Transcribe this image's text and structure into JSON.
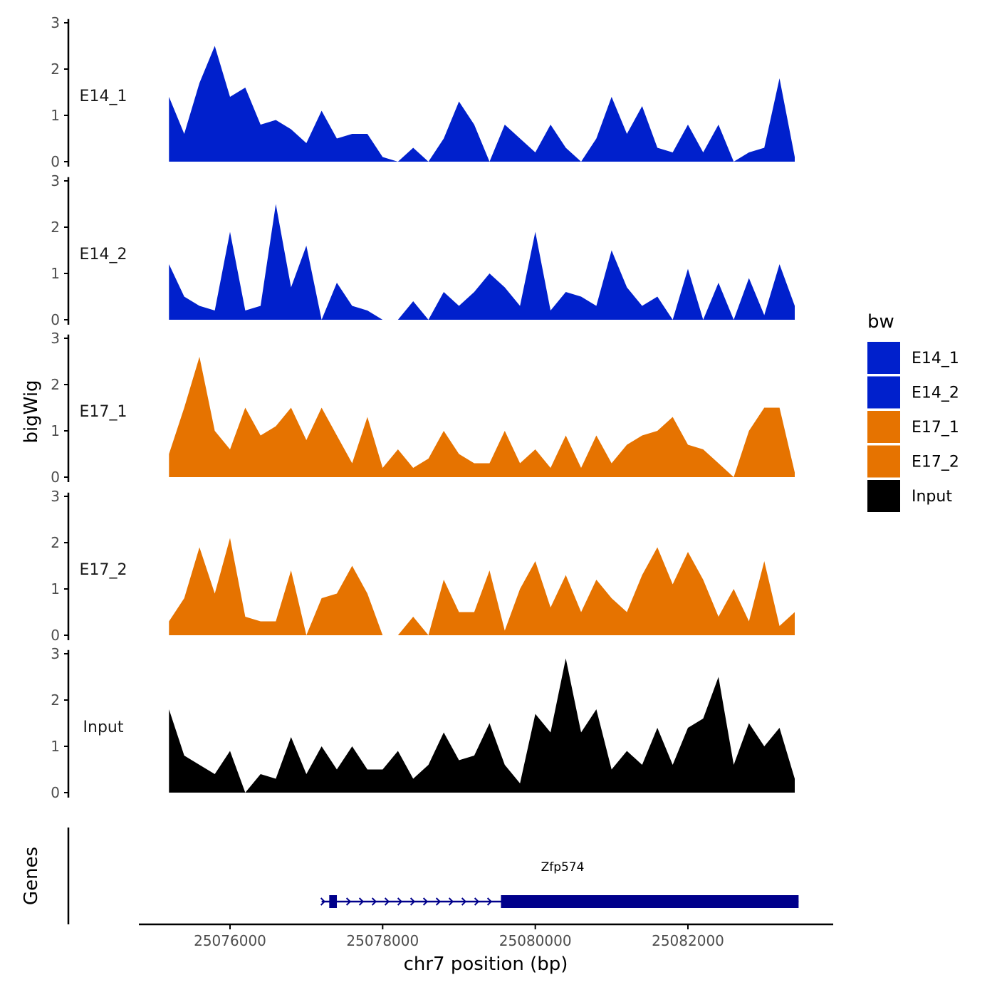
{
  "chart_data": {
    "type": "area",
    "title": "",
    "chromosome": "chr7",
    "xlabel": "chr7 position (bp)",
    "ylabel": "bigWig",
    "genes_label": "Genes",
    "xlim": [
      25074600,
      25083700
    ],
    "x_ticks": [
      25076000,
      25078000,
      25080000,
      25082000
    ],
    "x_tick_labels": [
      "25076000",
      "25078000",
      "25080000",
      "25082000"
    ],
    "ylim": [
      0,
      3
    ],
    "y_ticks": [
      0,
      1,
      2,
      3
    ],
    "y_tick_labels": [
      "0",
      "1",
      "2",
      "3"
    ],
    "legend": {
      "title": "bw",
      "position": "right",
      "entries": [
        {
          "label": "E14_1",
          "color": "#0020CC"
        },
        {
          "label": "E14_2",
          "color": "#0020CC"
        },
        {
          "label": "E17_1",
          "color": "#E67300"
        },
        {
          "label": "E17_2",
          "color": "#E67300"
        },
        {
          "label": "Input",
          "color": "#000000"
        }
      ]
    },
    "x": [
      25075200,
      25075400,
      25075600,
      25075800,
      25076000,
      25076200,
      25076400,
      25076600,
      25076800,
      25077000,
      25077200,
      25077400,
      25077600,
      25077800,
      25078000,
      25078200,
      25078400,
      25078600,
      25078800,
      25079000,
      25079200,
      25079400,
      25079600,
      25079800,
      25080000,
      25080200,
      25080400,
      25080600,
      25080800,
      25081000,
      25081200,
      25081400,
      25081600,
      25081800,
      25082000,
      25082200,
      25082400,
      25082600,
      25082800,
      25083000,
      25083200,
      25083400
    ],
    "series": [
      {
        "name": "E14_1",
        "color": "#0020CC",
        "values": [
          1.4,
          0.6,
          1.7,
          2.5,
          1.4,
          1.6,
          0.8,
          0.9,
          0.7,
          0.4,
          1.1,
          0.5,
          0.6,
          0.6,
          0.1,
          0.0,
          0.3,
          0.0,
          0.5,
          1.3,
          0.8,
          0.0,
          0.8,
          0.5,
          0.2,
          0.8,
          0.3,
          0.0,
          0.5,
          1.4,
          0.6,
          1.2,
          0.3,
          0.2,
          0.8,
          0.2,
          0.8,
          0.0,
          0.2,
          0.3,
          1.8,
          0.1
        ]
      },
      {
        "name": "E14_2",
        "color": "#0020CC",
        "values": [
          1.2,
          0.5,
          0.3,
          0.2,
          1.9,
          0.2,
          0.3,
          2.5,
          0.7,
          1.6,
          0.0,
          0.8,
          0.3,
          0.2,
          0.0,
          0.0,
          0.4,
          0.0,
          0.6,
          0.3,
          0.6,
          1.0,
          0.7,
          0.3,
          1.9,
          0.2,
          0.6,
          0.5,
          0.3,
          1.5,
          0.7,
          0.3,
          0.5,
          0.0,
          1.1,
          0.0,
          0.8,
          0.0,
          0.9,
          0.1,
          1.2,
          0.3
        ]
      },
      {
        "name": "E17_1",
        "color": "#E67300",
        "values": [
          0.5,
          1.5,
          2.6,
          1.0,
          0.6,
          1.5,
          0.9,
          1.1,
          1.5,
          0.8,
          1.5,
          0.9,
          0.3,
          1.3,
          0.2,
          0.6,
          0.2,
          0.4,
          1.0,
          0.5,
          0.3,
          0.3,
          1.0,
          0.3,
          0.6,
          0.2,
          0.9,
          0.2,
          0.9,
          0.3,
          0.7,
          0.9,
          1.0,
          1.3,
          0.7,
          0.6,
          0.3,
          0.0,
          1.0,
          1.5,
          1.5,
          0.1
        ]
      },
      {
        "name": "E17_2",
        "color": "#E67300",
        "values": [
          0.3,
          0.8,
          1.9,
          0.9,
          2.1,
          0.4,
          0.3,
          0.3,
          1.4,
          0.0,
          0.8,
          0.9,
          1.5,
          0.9,
          0.0,
          0.0,
          0.4,
          0.0,
          1.2,
          0.5,
          0.5,
          1.4,
          0.1,
          1.0,
          1.6,
          0.6,
          1.3,
          0.5,
          1.2,
          0.8,
          0.5,
          1.3,
          1.9,
          1.1,
          1.8,
          1.2,
          0.4,
          1.0,
          0.3,
          1.6,
          0.2,
          0.5
        ]
      },
      {
        "name": "Input",
        "color": "#000000",
        "values": [
          1.8,
          0.8,
          0.6,
          0.4,
          0.9,
          0.0,
          0.4,
          0.3,
          1.2,
          0.4,
          1.0,
          0.5,
          1.0,
          0.5,
          0.5,
          0.9,
          0.3,
          0.6,
          1.3,
          0.7,
          0.8,
          1.5,
          0.6,
          0.2,
          1.7,
          1.3,
          2.9,
          1.3,
          1.8,
          0.5,
          0.9,
          0.6,
          1.4,
          0.6,
          1.4,
          1.6,
          2.5,
          0.6,
          1.5,
          1.0,
          1.4,
          0.3
        ]
      }
    ],
    "gene": {
      "name": "Zfp574",
      "start": 25077200,
      "end": 25083450,
      "strand": "+",
      "color": "#00008B",
      "exons": [
        [
          25077300,
          25077400
        ],
        [
          25079550,
          25083450
        ]
      ]
    }
  }
}
